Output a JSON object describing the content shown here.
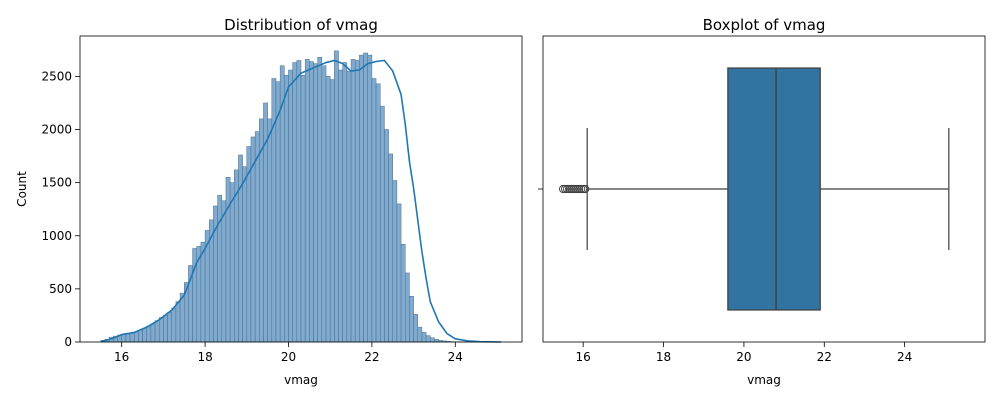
{
  "chart_data": [
    {
      "type": "histogram",
      "title": "Distribution of vmag",
      "xlabel": "vmag",
      "ylabel": "Count",
      "xlim": [
        15.0,
        25.6
      ],
      "ylim": [
        0,
        2880
      ],
      "xticks": [
        16,
        18,
        20,
        22,
        24
      ],
      "yticks": [
        0,
        500,
        1000,
        1500,
        2000,
        2500
      ],
      "kde": true,
      "grid": false,
      "bar_color": "#7aa7cb",
      "line_color": "#1f77b4",
      "bins": {
        "centers": [
          15.55,
          15.65,
          15.75,
          15.85,
          15.95,
          16.05,
          16.15,
          16.25,
          16.35,
          16.45,
          16.55,
          16.65,
          16.75,
          16.85,
          16.95,
          17.05,
          17.15,
          17.25,
          17.35,
          17.45,
          17.55,
          17.65,
          17.75,
          17.85,
          17.95,
          18.05,
          18.15,
          18.25,
          18.35,
          18.45,
          18.55,
          18.65,
          18.75,
          18.85,
          18.95,
          19.05,
          19.15,
          19.25,
          19.35,
          19.45,
          19.55,
          19.65,
          19.75,
          19.85,
          19.95,
          20.05,
          20.15,
          20.25,
          20.35,
          20.45,
          20.55,
          20.65,
          20.75,
          20.85,
          20.95,
          21.05,
          21.15,
          21.25,
          21.35,
          21.45,
          21.55,
          21.65,
          21.75,
          21.85,
          21.95,
          22.05,
          22.15,
          22.25,
          22.35,
          22.45,
          22.55,
          22.65,
          22.75,
          22.85,
          22.95,
          23.05,
          23.15,
          23.25,
          23.35,
          23.45,
          23.55,
          23.65,
          23.75,
          23.85,
          23.95,
          24.05,
          24.15,
          24.25,
          24.35,
          24.45,
          24.55
        ],
        "counts": [
          15,
          25,
          45,
          55,
          65,
          70,
          75,
          85,
          95,
          110,
          130,
          150,
          170,
          200,
          230,
          250,
          280,
          320,
          380,
          460,
          560,
          720,
          880,
          900,
          940,
          1050,
          1150,
          1280,
          1380,
          1330,
          1550,
          1500,
          1620,
          1760,
          1650,
          1840,
          1930,
          1980,
          2100,
          2250,
          2100,
          2480,
          2450,
          2600,
          2510,
          2560,
          2630,
          2650,
          2510,
          2660,
          2640,
          2620,
          2680,
          2600,
          2500,
          2470,
          2740,
          2560,
          2630,
          2550,
          2660,
          2650,
          2700,
          2720,
          2700,
          2480,
          2430,
          2220,
          2000,
          1770,
          1520,
          1300,
          920,
          650,
          430,
          260,
          140,
          90,
          60,
          40,
          25,
          15,
          10,
          5,
          3,
          2,
          1,
          1,
          1,
          1,
          1
        ]
      },
      "kde_curve": {
        "x": [
          15.5,
          15.8,
          16.0,
          16.3,
          16.6,
          16.9,
          17.2,
          17.5,
          17.8,
          18.0,
          18.3,
          18.6,
          18.9,
          19.2,
          19.5,
          19.8,
          20.0,
          20.3,
          20.6,
          20.9,
          21.1,
          21.3,
          21.5,
          21.7,
          21.9,
          22.1,
          22.3,
          22.5,
          22.7,
          22.8,
          22.9,
          23.0,
          23.1,
          23.2,
          23.3,
          23.4,
          23.6,
          23.8,
          24.0,
          24.3,
          24.6,
          25.1
        ],
        "y": [
          5,
          35,
          70,
          90,
          140,
          210,
          300,
          440,
          750,
          880,
          1100,
          1300,
          1490,
          1700,
          1910,
          2180,
          2400,
          2530,
          2580,
          2630,
          2650,
          2620,
          2550,
          2560,
          2620,
          2640,
          2650,
          2550,
          2330,
          2050,
          1700,
          1450,
          1150,
          850,
          600,
          380,
          190,
          80,
          30,
          10,
          3,
          0
        ]
      }
    },
    {
      "type": "boxplot",
      "title": "Boxplot of vmag",
      "xlabel": "vmag",
      "ylabel": "",
      "xlim": [
        15.0,
        26.0
      ],
      "xticks": [
        16,
        18,
        20,
        22,
        24
      ],
      "box_color": "#3274a1",
      "stats": {
        "whisker_low": 16.1,
        "q1": 19.6,
        "median": 20.8,
        "q3": 21.9,
        "whisker_high": 25.1
      },
      "outliers": [
        15.5,
        15.55,
        15.6,
        15.65,
        15.7,
        15.75,
        15.8,
        15.85,
        15.9,
        15.95,
        16.0,
        16.05
      ]
    }
  ]
}
